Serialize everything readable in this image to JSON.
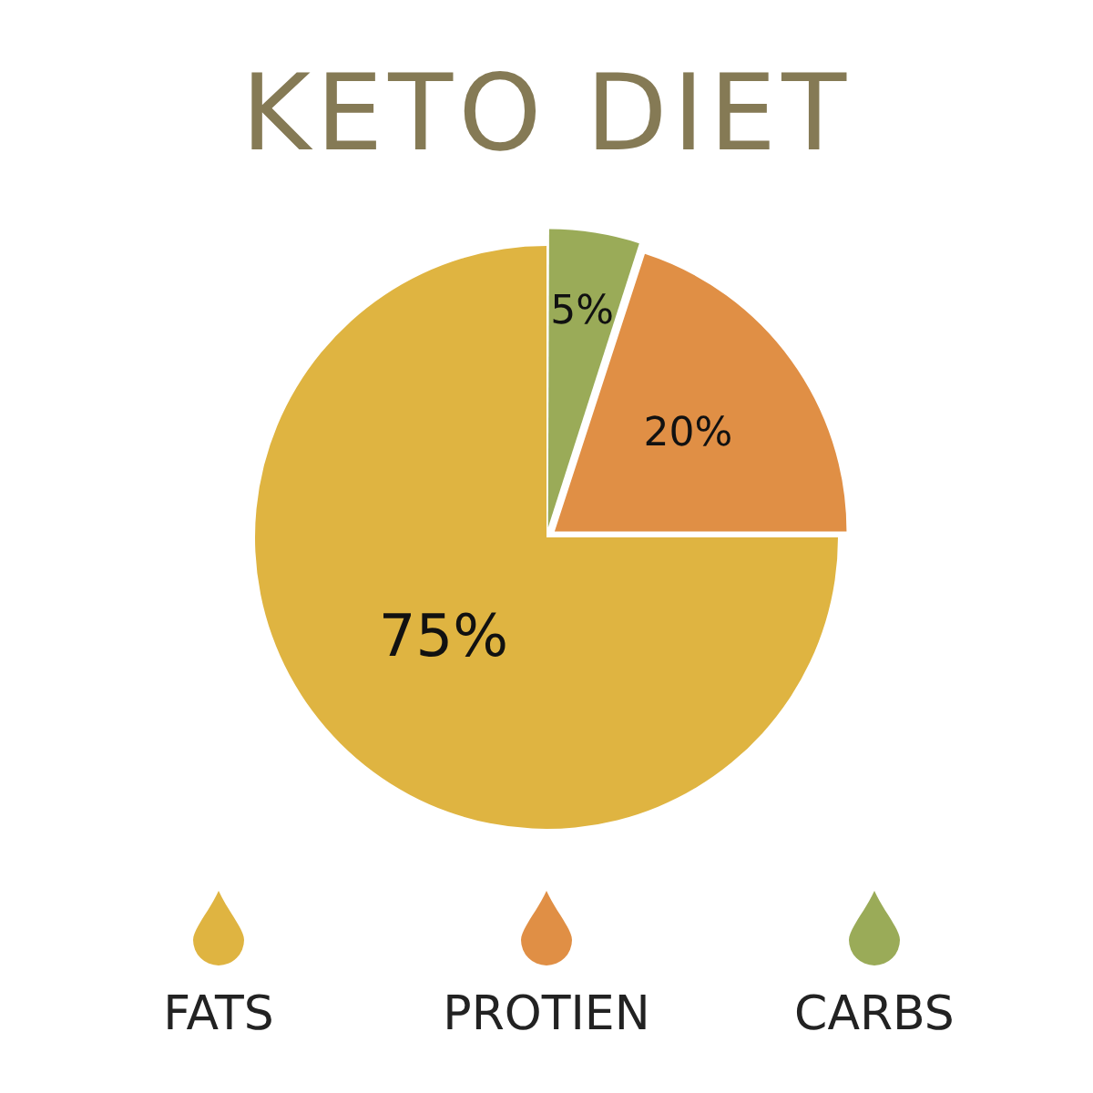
{
  "chart_data": {
    "type": "pie",
    "title": "KETO DIET",
    "categories": [
      "FATS",
      "PROTIEN",
      "CARBS"
    ],
    "values": [
      75,
      20,
      5
    ],
    "colors": [
      "#dfb441",
      "#e08f45",
      "#9aab58"
    ],
    "value_labels": [
      "75%",
      "20%",
      "5%"
    ],
    "legend": "bottom"
  }
}
